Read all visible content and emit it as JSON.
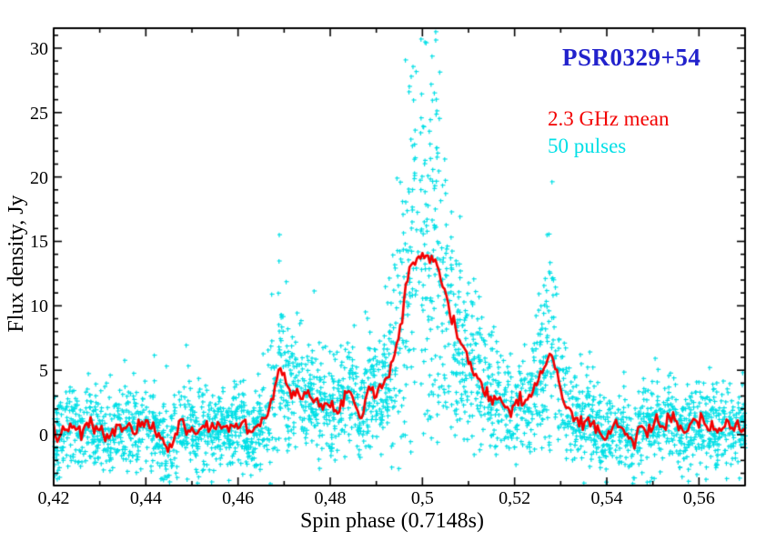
{
  "figure": {
    "title": {
      "text": "PSR0329+54",
      "color": "#2222cc"
    },
    "legend": {
      "mean": {
        "label": "2.3 GHz  mean",
        "color": "#f20000"
      },
      "pulses": {
        "label": "50 pulses",
        "color": "#00dfe6"
      }
    }
  },
  "chart_data": {
    "type": "line",
    "title": "PSR0329+54",
    "xlabel": "Spin phase (0.7148s)",
    "ylabel": "Flux density, Jy",
    "xlim": [
      0.42,
      0.57
    ],
    "ylim": [
      -3.95,
      31.55
    ],
    "grid": false,
    "legend_position": "upper-right",
    "axis_color": "#000000",
    "x_major_ticks": [
      0.42,
      0.44,
      0.46,
      0.48,
      0.5,
      0.52,
      0.54,
      0.56
    ],
    "x_tick_labels": [
      "0,42",
      "0,44",
      "0,46",
      "0,48",
      "0,5",
      "0,52",
      "0,54",
      "0,56"
    ],
    "x_minor_step": 0.01,
    "y_major_ticks": [
      0,
      5,
      10,
      15,
      20,
      25,
      30
    ],
    "y_tick_labels": [
      "0",
      "5",
      "10",
      "15",
      "20",
      "25",
      "30"
    ],
    "y_minor_step": 1,
    "series": [
      {
        "name": "2.3 GHz mean",
        "type": "line",
        "color": "#f20000",
        "line_width": 2.6,
        "jitter": 0.27,
        "seed": 7,
        "x": [
          0.42,
          0.421,
          0.422,
          0.423,
          0.424,
          0.425,
          0.426,
          0.427,
          0.428,
          0.429,
          0.43,
          0.431,
          0.432,
          0.433,
          0.434,
          0.435,
          0.436,
          0.437,
          0.438,
          0.439,
          0.44,
          0.441,
          0.442,
          0.443,
          0.444,
          0.445,
          0.446,
          0.447,
          0.448,
          0.449,
          0.45,
          0.451,
          0.452,
          0.453,
          0.454,
          0.455,
          0.456,
          0.457,
          0.458,
          0.459,
          0.46,
          0.461,
          0.462,
          0.463,
          0.464,
          0.465,
          0.466,
          0.467,
          0.468,
          0.4685,
          0.469,
          0.4695,
          0.47,
          0.471,
          0.472,
          0.473,
          0.474,
          0.475,
          0.476,
          0.477,
          0.478,
          0.479,
          0.48,
          0.481,
          0.482,
          0.483,
          0.484,
          0.485,
          0.486,
          0.4868,
          0.4875,
          0.4885,
          0.4895,
          0.49,
          0.491,
          0.492,
          0.493,
          0.494,
          0.495,
          0.496,
          0.497,
          0.4975,
          0.498,
          0.4985,
          0.499,
          0.4995,
          0.5,
          0.5005,
          0.501,
          0.5015,
          0.502,
          0.5025,
          0.503,
          0.5035,
          0.504,
          0.505,
          0.506,
          0.507,
          0.508,
          0.509,
          0.51,
          0.511,
          0.512,
          0.513,
          0.514,
          0.515,
          0.516,
          0.517,
          0.518,
          0.519,
          0.52,
          0.521,
          0.522,
          0.523,
          0.524,
          0.525,
          0.526,
          0.527,
          0.5278,
          0.5285,
          0.529,
          0.53,
          0.531,
          0.532,
          0.533,
          0.534,
          0.535,
          0.536,
          0.537,
          0.538,
          0.539,
          0.54,
          0.541,
          0.542,
          0.543,
          0.544,
          0.545,
          0.546,
          0.547,
          0.548,
          0.549,
          0.55,
          0.551,
          0.552,
          0.553,
          0.554,
          0.555,
          0.556,
          0.557,
          0.558,
          0.559,
          0.56,
          0.561,
          0.562,
          0.563,
          0.564,
          0.565,
          0.566,
          0.567,
          0.568,
          0.569,
          0.57
        ],
        "y": [
          0.1,
          -0.4,
          0.4,
          0.8,
          0.2,
          0.6,
          -0.2,
          0.7,
          1.0,
          0.3,
          0.6,
          -0.1,
          -0.5,
          0.4,
          0.7,
          0.2,
          0.9,
          0.4,
          0.1,
          0.7,
          0.9,
          0.3,
          0.5,
          -0.2,
          -0.7,
          -1.0,
          -0.2,
          0.5,
          0.8,
          0.3,
          0.6,
          0.1,
          0.5,
          0.8,
          0.3,
          0.9,
          0.5,
          0.8,
          0.4,
          0.9,
          0.5,
          1.0,
          0.5,
          0.3,
          0.8,
          1.0,
          1.4,
          2.2,
          3.8,
          4.5,
          5.2,
          4.7,
          4.3,
          3.6,
          3.3,
          3.7,
          3.1,
          3.4,
          2.8,
          2.3,
          2.1,
          2.4,
          2.0,
          1.9,
          2.3,
          2.9,
          3.5,
          2.7,
          1.9,
          1.4,
          2.7,
          3.9,
          3.4,
          3.1,
          3.7,
          4.3,
          5.1,
          6.2,
          8.0,
          10.5,
          12.8,
          13.5,
          13.9,
          13.2,
          14.0,
          13.5,
          14.3,
          13.7,
          14.1,
          13.4,
          13.9,
          13.3,
          13.6,
          12.9,
          12.2,
          10.7,
          9.3,
          8.1,
          7.4,
          7.0,
          6.0,
          5.0,
          4.4,
          3.8,
          3.3,
          3.0,
          2.8,
          2.6,
          2.2,
          1.8,
          2.5,
          3.1,
          2.6,
          2.7,
          3.3,
          4.2,
          4.9,
          5.6,
          6.3,
          5.7,
          5.0,
          3.5,
          2.4,
          1.7,
          1.2,
          0.9,
          0.8,
          1.1,
          1.0,
          0.5,
          0.1,
          -0.4,
          0.3,
          0.9,
          0.5,
          0.2,
          -0.3,
          -0.7,
          0.2,
          0.7,
          0.3,
          0.8,
          1.1,
          0.5,
          0.9,
          1.4,
          1.2,
          0.4,
          -0.1,
          0.5,
          1.0,
          0.6,
          1.1,
          0.5,
          0.8,
          0.2,
          0.6,
          0.9,
          0.3,
          0.6,
          0.4,
          0.5
        ]
      },
      {
        "name": "50 pulses",
        "type": "scatter",
        "color": "#00dfe6",
        "marker": "plus",
        "marker_size": 5,
        "n_points": 3200,
        "seed": 12345,
        "gain_sigma": 0.62,
        "noise_sigma": 1.55
      }
    ]
  }
}
